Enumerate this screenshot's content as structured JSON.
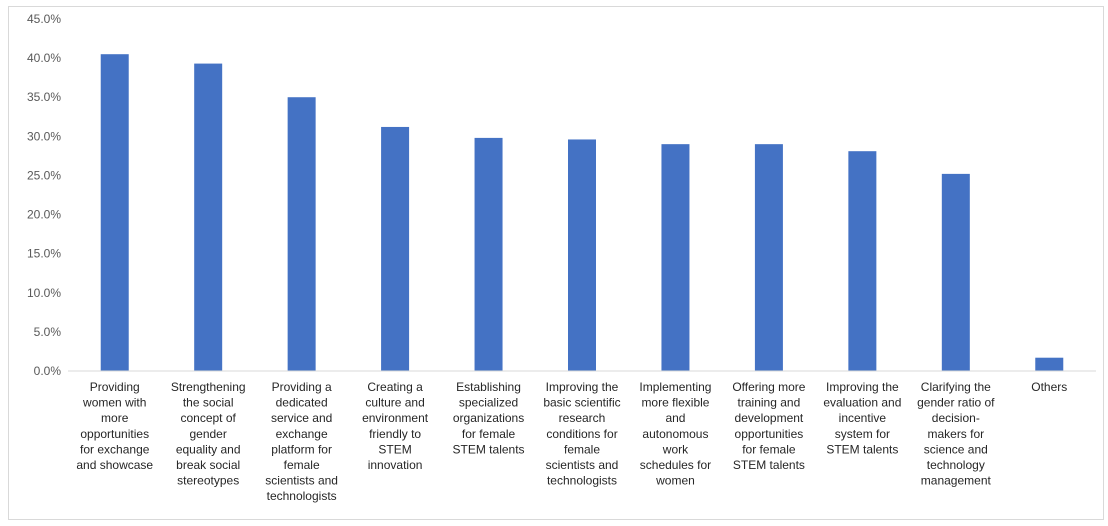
{
  "chart_data": {
    "type": "bar",
    "title": "",
    "xlabel": "",
    "ylabel": "",
    "ylim": [
      0,
      45
    ],
    "ytick_step": 5,
    "ytick_labels": [
      "0.0%",
      "5.0%",
      "10.0%",
      "15.0%",
      "20.0%",
      "25.0%",
      "30.0%",
      "35.0%",
      "40.0%",
      "45.0%"
    ],
    "grid": false,
    "bar_color": "#4472C4",
    "categories": [
      [
        "Providing",
        "women with",
        "more",
        "opportunities",
        "for exchange",
        "and showcase"
      ],
      [
        "Strengthening",
        "the social",
        "concept of",
        "gender",
        "equality and",
        "break social",
        "stereotypes"
      ],
      [
        "Providing a",
        "dedicated",
        "service and",
        "exchange",
        "platform for",
        "female",
        "scientists and",
        "technologists"
      ],
      [
        "Creating a",
        "culture and",
        "environment",
        "friendly to",
        "STEM",
        "innovation"
      ],
      [
        "Establishing",
        "specialized",
        "organizations",
        "for female",
        "STEM talents"
      ],
      [
        "Improving the",
        "basic scientific",
        "research",
        "conditions for",
        "female",
        "scientists and",
        "technologists"
      ],
      [
        "Implementing",
        "more flexible",
        "and",
        "autonomous",
        "work",
        "schedules for",
        "women"
      ],
      [
        "Offering more",
        "training and",
        "development",
        "opportunities",
        "for female",
        "STEM talents"
      ],
      [
        "Improving the",
        "evaluation and",
        "incentive",
        "system for",
        "STEM talents"
      ],
      [
        "Clarifying the",
        "gender ratio of",
        "decision-",
        "makers for",
        "science and",
        "technology",
        "management"
      ],
      [
        "Others"
      ]
    ],
    "values": [
      40.5,
      39.3,
      35.0,
      31.2,
      29.8,
      29.6,
      29.0,
      29.0,
      28.1,
      25.2,
      1.7
    ]
  }
}
